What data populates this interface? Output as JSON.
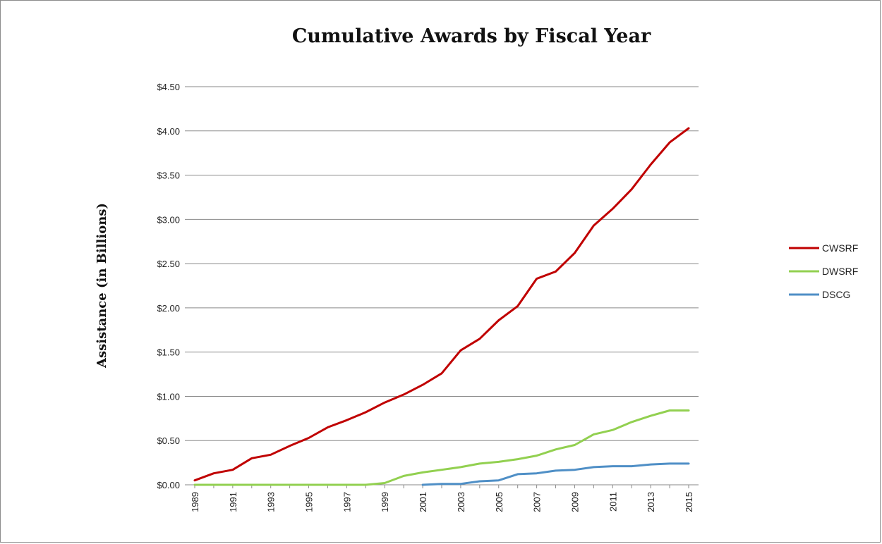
{
  "chart_data": {
    "type": "line",
    "title": "Cumulative Awards by Fiscal Year",
    "ylabel": "Assistance (in Billions)",
    "xlabel": "",
    "x": [
      1989,
      1990,
      1991,
      1992,
      1993,
      1994,
      1995,
      1996,
      1997,
      1998,
      1999,
      2000,
      2001,
      2002,
      2003,
      2004,
      2005,
      2006,
      2007,
      2008,
      2009,
      2010,
      2011,
      2012,
      2013,
      2014,
      2015
    ],
    "x_tick_labels": [
      "1989",
      "1991",
      "1993",
      "1995",
      "1997",
      "1999",
      "2001",
      "2003",
      "2005",
      "2007",
      "2009",
      "2011",
      "2013",
      "2015"
    ],
    "y_tick_labels": [
      "$0.00",
      "$0.50",
      "$1.00",
      "$1.50",
      "$2.00",
      "$2.50",
      "$3.00",
      "$3.50",
      "$4.00",
      "$4.50"
    ],
    "ylim": [
      0,
      4.5
    ],
    "grid": "horizontal",
    "legend_position": "right",
    "series": [
      {
        "name": "CWSRF",
        "color": "#c00000",
        "values": [
          0.05,
          0.13,
          0.17,
          0.3,
          0.34,
          0.44,
          0.53,
          0.65,
          0.73,
          0.82,
          0.93,
          1.02,
          1.13,
          1.26,
          1.52,
          1.65,
          1.86,
          2.02,
          2.33,
          2.41,
          2.62,
          2.93,
          3.12,
          3.34,
          3.62,
          3.87,
          4.03
        ]
      },
      {
        "name": "DWSRF",
        "color": "#92d050",
        "values": [
          0,
          0,
          0,
          0,
          0,
          0,
          0,
          0,
          0,
          0,
          0.02,
          0.1,
          0.14,
          0.17,
          0.2,
          0.24,
          0.26,
          0.29,
          0.33,
          0.4,
          0.45,
          0.57,
          0.62,
          0.71,
          0.78,
          0.84,
          0.84
        ]
      },
      {
        "name": "DSCG",
        "color": "#4f8fc6",
        "values": [
          null,
          null,
          null,
          null,
          null,
          null,
          null,
          null,
          null,
          null,
          null,
          null,
          0,
          0.01,
          0.01,
          0.04,
          0.05,
          0.12,
          0.13,
          0.16,
          0.17,
          0.2,
          0.21,
          0.21,
          0.23,
          0.24,
          0.24
        ]
      }
    ]
  }
}
